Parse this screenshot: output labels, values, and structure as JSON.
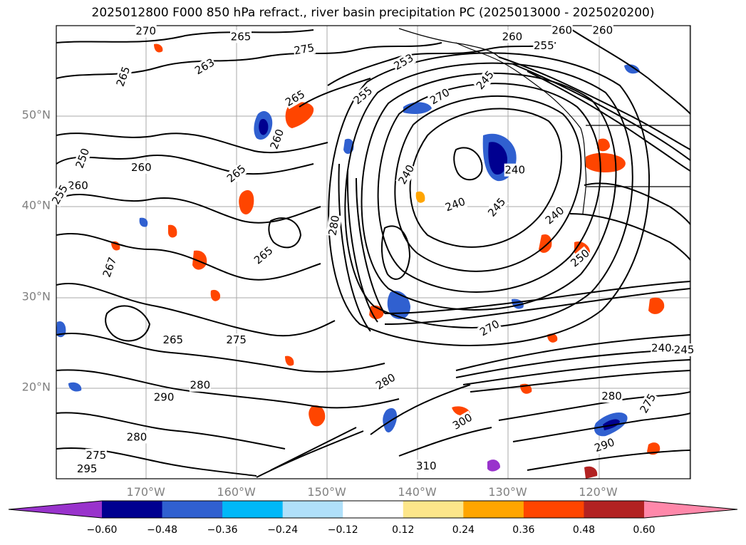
{
  "title": "2025012800 F000 850 hPa refract., river basin precipitation PC (2025013000 - 2025020200)",
  "lat_labels": [
    {
      "text": "50°N",
      "lat": 50
    },
    {
      "text": "40°N",
      "lat": 40
    },
    {
      "text": "30°N",
      "lat": 30
    },
    {
      "text": "20°N",
      "lat": 20
    }
  ],
  "lon_labels": [
    {
      "text": "170°W",
      "lon": -170
    },
    {
      "text": "160°W",
      "lon": -160
    },
    {
      "text": "150°W",
      "lon": -150
    },
    {
      "text": "140°W",
      "lon": -140
    },
    {
      "text": "130°W",
      "lon": -130
    },
    {
      "text": "120°W",
      "lon": -120
    }
  ],
  "colorbar": {
    "ticks": [
      "−0.60",
      "−0.48",
      "−0.36",
      "−0.24",
      "−0.12",
      "0.12",
      "0.24",
      "0.36",
      "0.48",
      "0.60"
    ],
    "colors": [
      "#9933cc",
      "#000090",
      "#3060d0",
      "#00b8f8",
      "#b0e0fa",
      "#ffffff",
      "#fde68a",
      "#ffa500",
      "#ff4500",
      "#b22222",
      "#ff88aa"
    ]
  },
  "contour_labels": [
    {
      "text": "270",
      "lon": -170,
      "lat": 59.2,
      "rot": 0
    },
    {
      "text": "265",
      "lon": -159.5,
      "lat": 58.6,
      "rot": 0
    },
    {
      "text": "275",
      "lon": -152.5,
      "lat": 57.2,
      "rot": -10
    },
    {
      "text": "263",
      "lon": -163.5,
      "lat": 55.3,
      "rot": -30
    },
    {
      "text": "265",
      "lon": -172.5,
      "lat": 54.2,
      "rot": -70
    },
    {
      "text": "265",
      "lon": -153.5,
      "lat": 51.8,
      "rot": -30
    },
    {
      "text": "255",
      "lon": -146,
      "lat": 52.1,
      "rot": -40
    },
    {
      "text": "253",
      "lon": -141.5,
      "lat": 55.8,
      "rot": -30
    },
    {
      "text": "260",
      "lon": -129.5,
      "lat": 58.6,
      "rot": 0
    },
    {
      "text": "255",
      "lon": -126,
      "lat": 57.6,
      "rot": 0
    },
    {
      "text": "260",
      "lon": -124,
      "lat": 59.3,
      "rot": 0
    },
    {
      "text": "260",
      "lon": -119.5,
      "lat": 59.3,
      "rot": 0
    },
    {
      "text": "270",
      "lon": -137.5,
      "lat": 52,
      "rot": -30
    },
    {
      "text": "245",
      "lon": -132.5,
      "lat": 53.8,
      "rot": -50
    },
    {
      "text": "250",
      "lon": -177,
      "lat": 45.2,
      "rot": -70
    },
    {
      "text": "260",
      "lon": -170.5,
      "lat": 44.2,
      "rot": 0
    },
    {
      "text": "260",
      "lon": -177.5,
      "lat": 42.2,
      "rot": 0
    },
    {
      "text": "255",
      "lon": -179.5,
      "lat": 41.2,
      "rot": -60
    },
    {
      "text": "260",
      "lon": -155.5,
      "lat": 47.3,
      "rot": -70
    },
    {
      "text": "265",
      "lon": -160,
      "lat": 43.5,
      "rot": -40
    },
    {
      "text": "240",
      "lon": -141.2,
      "lat": 43.4,
      "rot": -60
    },
    {
      "text": "240",
      "lon": -129.2,
      "lat": 43.9,
      "rot": 0
    },
    {
      "text": "240",
      "lon": -135.8,
      "lat": 40.1,
      "rot": -20
    },
    {
      "text": "245",
      "lon": -131.2,
      "lat": 39.8,
      "rot": -50
    },
    {
      "text": "240",
      "lon": -124.8,
      "lat": 38.9,
      "rot": -40
    },
    {
      "text": "280",
      "lon": -149.2,
      "lat": 37.8,
      "rot": -80
    },
    {
      "text": "265",
      "lon": -157,
      "lat": 34.5,
      "rot": -40
    },
    {
      "text": "250",
      "lon": -122,
      "lat": 34.2,
      "rot": -40
    },
    {
      "text": "267",
      "lon": -174,
      "lat": 33.2,
      "rot": -70
    },
    {
      "text": "270",
      "lon": -132,
      "lat": 26.5,
      "rot": -30
    },
    {
      "text": "275",
      "lon": -160,
      "lat": 25.2,
      "rot": 0
    },
    {
      "text": "265",
      "lon": -167,
      "lat": 25.2,
      "rot": 0
    },
    {
      "text": "280",
      "lon": -164,
      "lat": 20.2,
      "rot": 0
    },
    {
      "text": "290",
      "lon": -168,
      "lat": 18.9,
      "rot": 0
    },
    {
      "text": "280",
      "lon": -143.5,
      "lat": 20.6,
      "rot": -30
    },
    {
      "text": "280",
      "lon": -118.5,
      "lat": 19,
      "rot": 0
    },
    {
      "text": "275",
      "lon": -114.5,
      "lat": 18.2,
      "rot": -60
    },
    {
      "text": "245",
      "lon": -110.5,
      "lat": 24.1,
      "rot": 0
    },
    {
      "text": "240",
      "lon": -113,
      "lat": 24.3,
      "rot": 0
    },
    {
      "text": "300",
      "lon": -135,
      "lat": 16.2,
      "rot": -30
    },
    {
      "text": "310",
      "lon": -139,
      "lat": 11.3,
      "rot": 0
    },
    {
      "text": "290",
      "lon": -119.3,
      "lat": 13.6,
      "rot": -20
    },
    {
      "text": "280",
      "lon": -171,
      "lat": 14.5,
      "rot": 0
    },
    {
      "text": "275",
      "lon": -175.5,
      "lat": 12.5,
      "rot": 0
    },
    {
      "text": "295",
      "lon": -176.5,
      "lat": 11,
      "rot": 0
    }
  ]
}
